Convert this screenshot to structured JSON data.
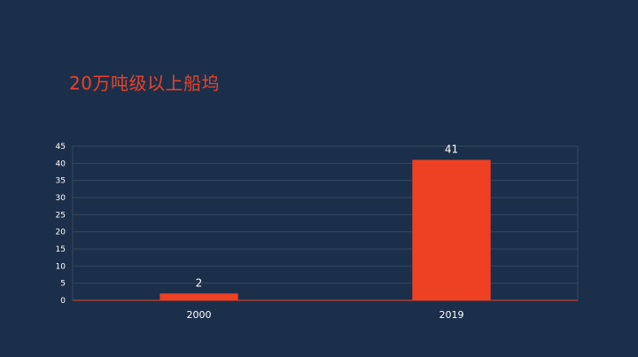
{
  "title": "20万吨级以上船坞",
  "colors": {
    "background": "#1c2f4a",
    "accent": "#e8432a",
    "bar": "#ee4022",
    "grid": "#34485f",
    "axis": "#e8432a",
    "text": "#ffffff"
  },
  "chart_data": {
    "type": "bar",
    "title": "20万吨级以上船坞",
    "categories": [
      "2000",
      "2019"
    ],
    "values": [
      2,
      41
    ],
    "data_labels": [
      "2",
      "41"
    ],
    "xlabel": "",
    "ylabel": "",
    "ylim": [
      0,
      45
    ],
    "yticks": [
      0,
      5,
      10,
      15,
      20,
      25,
      30,
      35,
      40,
      45
    ],
    "grid": true,
    "legend": "none"
  }
}
